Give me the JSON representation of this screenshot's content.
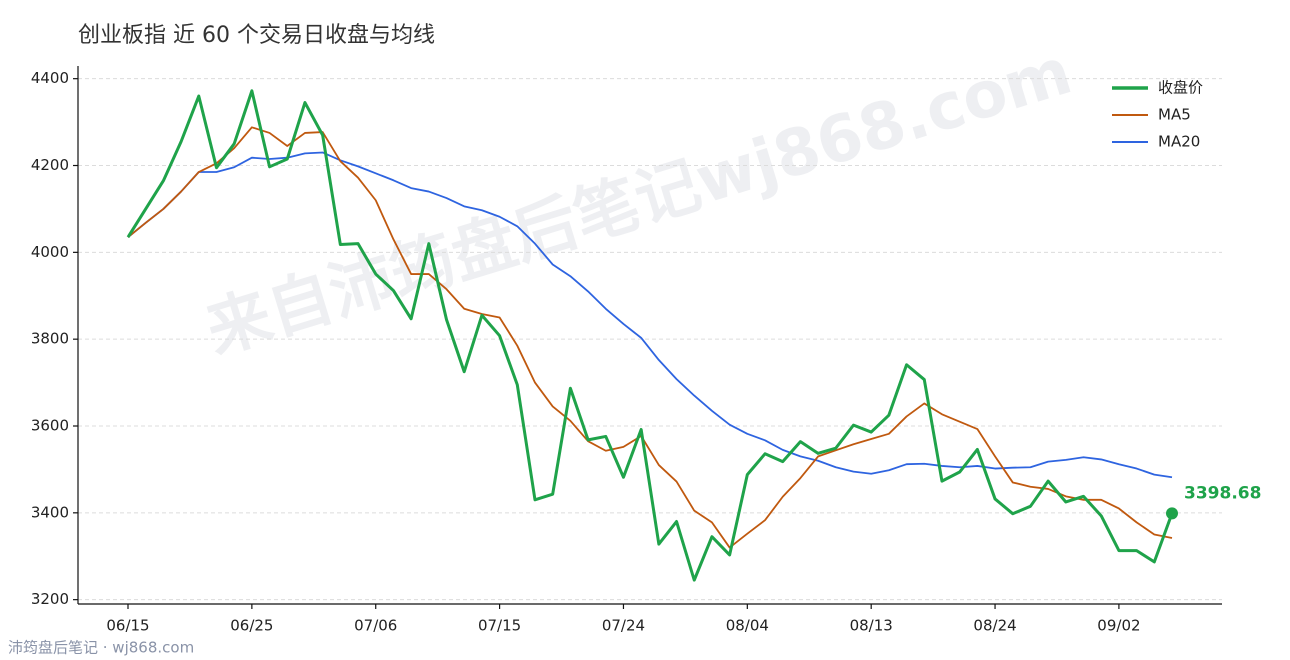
{
  "chart_data": {
    "type": "line",
    "title": "创业板指 近 60 个交易日收盘与均线",
    "watermark": "来自沛筠盘后笔记wj868.com",
    "footer": "沛筠盘后笔记 · wj868.com",
    "categories": [
      "06/15",
      null,
      null,
      null,
      null,
      null,
      null,
      "06/25",
      null,
      null,
      null,
      null,
      null,
      null,
      "07/06",
      null,
      null,
      null,
      null,
      null,
      null,
      "07/15",
      null,
      null,
      null,
      null,
      null,
      null,
      "07/24",
      null,
      null,
      null,
      null,
      null,
      null,
      "08/04",
      null,
      null,
      null,
      null,
      null,
      null,
      "08/13",
      null,
      null,
      null,
      null,
      null,
      null,
      "08/24",
      null,
      null,
      null,
      null,
      null,
      null,
      "09/02",
      null,
      null,
      null
    ],
    "series": [
      {
        "name": "收盘价",
        "color": "#1fa34a",
        "values": [
          4035,
          4100,
          4165,
          4255,
          4360,
          4195,
          4250,
          4372,
          4197,
          4215,
          4345,
          4270,
          4018,
          4020,
          3950,
          3912,
          3847,
          4020,
          3845,
          3725,
          3855,
          3808,
          3695,
          3430,
          3443,
          3687,
          3568,
          3576,
          3482,
          3592,
          3328,
          3380,
          3245,
          3345,
          3303,
          3488,
          3536,
          3518,
          3564,
          3537,
          3549,
          3602,
          3586,
          3625,
          3741,
          3707,
          3473,
          3494,
          3546,
          3432,
          3398,
          3415,
          3473,
          3425,
          3438,
          3393,
          3313,
          3313,
          3287,
          3398.68
        ]
      },
      {
        "name": "MA5",
        "color": "#c0590f",
        "values": [
          4035,
          4068,
          4100,
          4140,
          4185,
          4205,
          4240,
          4288,
          4275,
          4245,
          4275,
          4277,
          4210,
          4172,
          4120,
          4030,
          3950,
          3950,
          3915,
          3870,
          3858,
          3850,
          3785,
          3700,
          3645,
          3612,
          3565,
          3543,
          3552,
          3577,
          3510,
          3472,
          3405,
          3378,
          3320,
          3352,
          3383,
          3437,
          3480,
          3530,
          3544,
          3558,
          3570,
          3582,
          3622,
          3652,
          3627,
          3610,
          3593,
          3530,
          3470,
          3460,
          3455,
          3438,
          3430,
          3430,
          3410,
          3378,
          3350,
          3342
        ]
      },
      {
        "name": "MA20",
        "color": "#2e64e0",
        "values": [
          4035,
          4068,
          4100,
          4140,
          4185,
          4185,
          4196,
          4218,
          4215,
          4218,
          4228,
          4230,
          4212,
          4198,
          4182,
          4166,
          4148,
          4140,
          4125,
          4106,
          4097,
          4082,
          4060,
          4020,
          3972,
          3945,
          3910,
          3870,
          3835,
          3803,
          3752,
          3708,
          3670,
          3635,
          3603,
          3582,
          3567,
          3545,
          3530,
          3520,
          3505,
          3495,
          3490,
          3498,
          3512,
          3513,
          3508,
          3505,
          3508,
          3502,
          3504,
          3505,
          3518,
          3522,
          3528,
          3523,
          3512,
          3502,
          3488,
          3482
        ]
      }
    ],
    "ylim": [
      3190,
      4420
    ],
    "yticks": [
      3200,
      3400,
      3600,
      3800,
      4000,
      4200,
      4400
    ],
    "grid": true,
    "legend": "upper-right"
  }
}
